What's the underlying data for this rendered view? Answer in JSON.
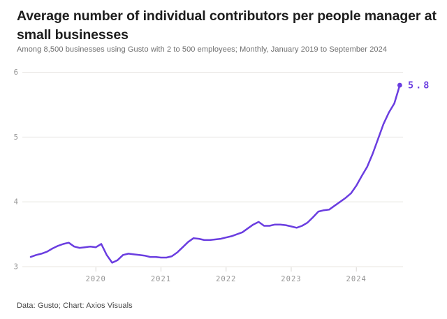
{
  "header": {
    "title_lines": [
      "Average number of individual contributors per people manager at",
      "small businesses"
    ],
    "subtitle": "Among 8,500 businesses using Gusto with 2 to 500 employees; Monthly, January 2019 to September 2024"
  },
  "footer": {
    "credit": "Data: Gusto; Chart: Axios Visuals"
  },
  "colors": {
    "line": "#6a3de0",
    "gridline": "#e8e6e2",
    "axis_text": "#949494",
    "title_text": "#1d1d1d"
  },
  "chart_data": {
    "type": "line",
    "title": "Average number of individual contributors per people manager at small businesses",
    "subtitle": "Among 8,500 businesses using Gusto with 2 to 500 employees; Monthly, January 2019 to September 2024",
    "x_start": "2019-01",
    "x_end": "2024-09",
    "frequency": "monthly",
    "n_points": 69,
    "x_tick_labels": [
      "2020",
      "2021",
      "2022",
      "2023",
      "2024"
    ],
    "y_ticks": [
      3,
      4,
      5,
      6
    ],
    "ylim": [
      3,
      6
    ],
    "grid": true,
    "legend": "none",
    "end_label": "5.8",
    "series": [
      {
        "name": "Average individual contributors per people manager",
        "values": [
          3.15,
          3.18,
          3.2,
          3.23,
          3.28,
          3.32,
          3.35,
          3.37,
          3.31,
          3.29,
          3.3,
          3.31,
          3.3,
          3.35,
          3.18,
          3.06,
          3.1,
          3.18,
          3.2,
          3.19,
          3.18,
          3.17,
          3.15,
          3.15,
          3.14,
          3.14,
          3.16,
          3.22,
          3.3,
          3.38,
          3.44,
          3.43,
          3.41,
          3.41,
          3.42,
          3.43,
          3.45,
          3.47,
          3.5,
          3.53,
          3.59,
          3.65,
          3.69,
          3.63,
          3.63,
          3.65,
          3.65,
          3.64,
          3.62,
          3.6,
          3.63,
          3.68,
          3.76,
          3.85,
          3.87,
          3.88,
          3.94,
          4.0,
          4.06,
          4.13,
          4.25,
          4.4,
          4.54,
          4.74,
          4.97,
          5.2,
          5.38,
          5.52,
          5.8
        ]
      }
    ]
  }
}
